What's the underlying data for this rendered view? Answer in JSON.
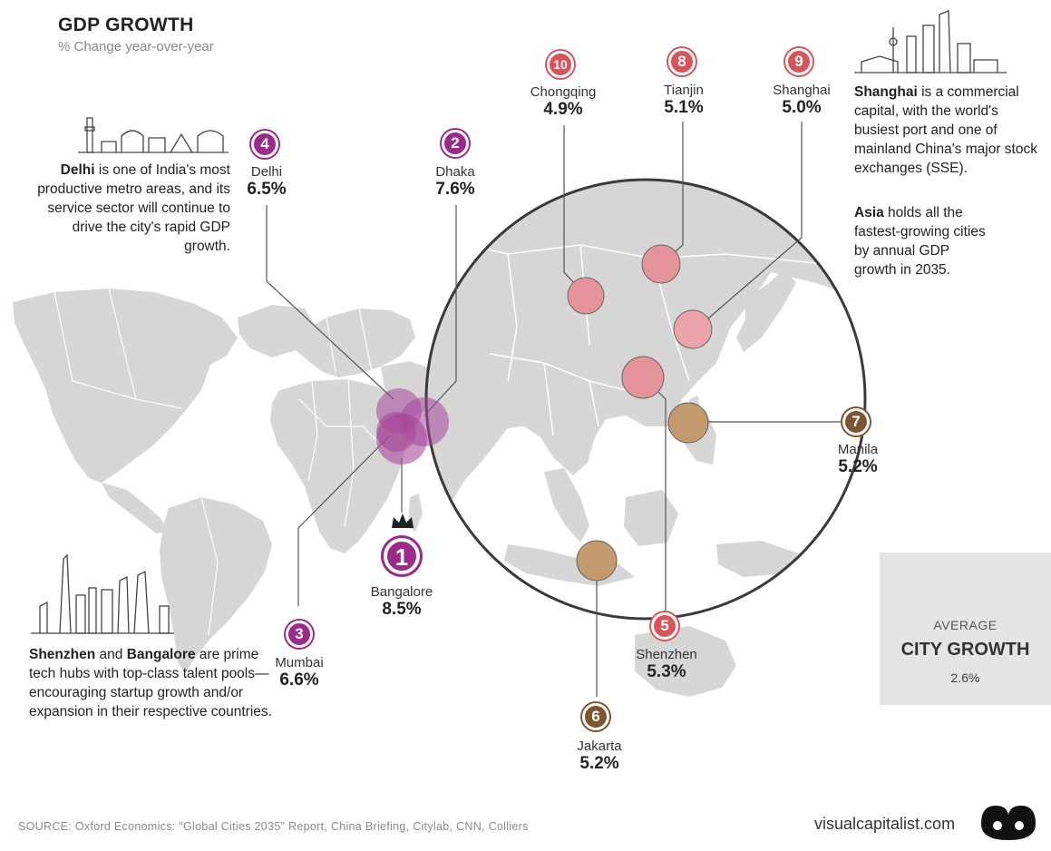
{
  "header": {
    "title": "GDP GROWTH",
    "subtitle": "% Change year-over-year"
  },
  "notes": {
    "delhi": {
      "bold": "Delhi",
      "text": " is one of India's most productive metro areas, and its service sector will continue to drive the city's rapid GDP growth."
    },
    "shanghai": {
      "bold": "Shanghai",
      "text": " is a commercial capital, with the world's busiest port and one of mainland China's major stock exchanges (SSE)."
    },
    "asia": {
      "bold": "Asia",
      "text": " holds all the fastest-growing cities by annual GDP growth in 2035."
    },
    "tech": {
      "bold1": "Shenzhen",
      "mid": " and ",
      "bold2": "Bangalore",
      "text": " are prime tech hubs with top-class talent pools—encouraging startup growth and/or expansion in their respective countries."
    }
  },
  "cities": [
    {
      "rank": "1",
      "name": "Bangalore",
      "pct": "8.5%",
      "color": "#9b2a8a"
    },
    {
      "rank": "2",
      "name": "Dhaka",
      "pct": "7.6%",
      "color": "#9b2a8a"
    },
    {
      "rank": "3",
      "name": "Mumbai",
      "pct": "6.6%",
      "color": "#9b2a8a"
    },
    {
      "rank": "4",
      "name": "Delhi",
      "pct": "6.5%",
      "color": "#9b2a8a"
    },
    {
      "rank": "5",
      "name": "Shenzhen",
      "pct": "5.3%",
      "color": "#d9545a"
    },
    {
      "rank": "6",
      "name": "Jakarta",
      "pct": "5.2%",
      "color": "#7b5631"
    },
    {
      "rank": "7",
      "name": "Manila",
      "pct": "5.2%",
      "color": "#7b5631"
    },
    {
      "rank": "8",
      "name": "Tianjin",
      "pct": "5.1%",
      "color": "#d9545a"
    },
    {
      "rank": "9",
      "name": "Shanghai",
      "pct": "5.0%",
      "color": "#d9545a"
    },
    {
      "rank": "10",
      "name": "Chongqing",
      "pct": "4.9%",
      "color": "#d9545a"
    }
  ],
  "average": {
    "label1": "AVERAGE",
    "label2": "CITY GROWTH",
    "value": "2.6%",
    "icon": "calendar-icon"
  },
  "icons": {
    "crown": "crown-icon",
    "brand": "visual-capitalist-logo"
  },
  "footer": {
    "source": "SOURCE: Oxford Economics: \"Global Cities 2035\" Report, China Briefing, Citylab, CNN, Colliers",
    "brand": "visualcapitalist.com"
  },
  "colors": {
    "map_land": "#d6d6d6",
    "circle_ring": "#3a3a3a",
    "india_bubble": "#a6479a",
    "china_bubble": "#e4939a",
    "sea_bubble": "#b98a5d",
    "avg_box": "#e4e4e4"
  }
}
